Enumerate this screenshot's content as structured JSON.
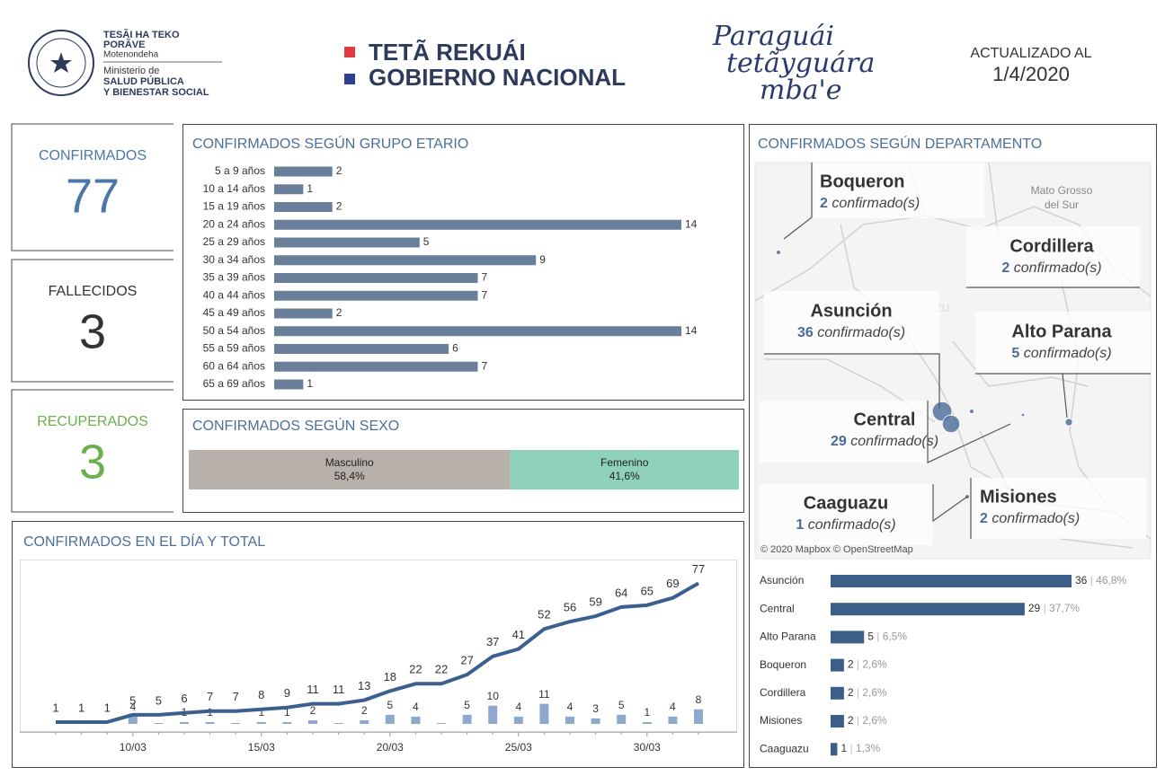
{
  "header": {
    "ministry_lines": [
      "TESÃI HA TEKO",
      "PORÃVE",
      "Motenondeha",
      "Ministerio de",
      "SALUD PÚBLICA",
      "Y BIENESTAR SOCIAL"
    ],
    "government": [
      "TETÃ REKUÁI",
      "GOBIERNO NACIONAL"
    ],
    "slogan": [
      "Paraguái",
      "tetãyguára",
      "mba'e"
    ],
    "updated_label": "ACTUALIZADO AL",
    "updated_date": "1/4/2020"
  },
  "kpis": [
    {
      "label": "CONFIRMADOS",
      "value": 77,
      "color": "#4a76a8"
    },
    {
      "label": "FALLECIDOS",
      "value": 3,
      "color": "#333333"
    },
    {
      "label": "RECUPERADOS",
      "value": 3,
      "color": "#6ab04c"
    }
  ],
  "chart_data": [
    {
      "type": "hbar",
      "title": "CONFIRMADOS SEGÚN GRUPO ETARIO",
      "categories": [
        "5 a 9 años",
        "10 a 14 años",
        "15 a 19 años",
        "20 a 24 años",
        "25 a 29 años",
        "30 a 34 años",
        "35 a 39 años",
        "40 a 44 años",
        "45 a 49 años",
        "50 a 54 años",
        "55 a 59 años",
        "60 a 64 años",
        "65 a 69 años"
      ],
      "values": [
        2,
        1,
        2,
        14,
        5,
        9,
        7,
        7,
        2,
        14,
        6,
        7,
        1
      ],
      "color": "#6a7f9a",
      "xlim": [
        0,
        14
      ]
    },
    {
      "type": "share",
      "title": "CONFIRMADOS SEGÚN SEXO",
      "series": [
        {
          "name": "Masculino",
          "color": "#b8b0ab",
          "values": [
            58.4
          ],
          "value_labels": [
            "58,4%"
          ]
        },
        {
          "name": "Femenino",
          "color": "#8fd1bb",
          "values": [
            41.6
          ],
          "value_labels": [
            "41,6%"
          ]
        }
      ],
      "xlim": [
        0,
        100
      ]
    },
    {
      "type": "linebar",
      "title": "CONFIRMADOS EN EL DÍA Y TOTAL",
      "categories": [
        null,
        null,
        null,
        "10/03",
        null,
        null,
        null,
        null,
        "15/03",
        null,
        null,
        null,
        null,
        "20/03",
        null,
        null,
        null,
        null,
        "25/03",
        null,
        null,
        null,
        null,
        "30/03",
        null,
        null
      ],
      "series": [
        {
          "kind": "line",
          "color": "#3b5f8e",
          "values": [
            1,
            1,
            1,
            5,
            5,
            6,
            7,
            7,
            8,
            9,
            11,
            11,
            13,
            18,
            22,
            22,
            27,
            37,
            41,
            52,
            56,
            59,
            64,
            65,
            69,
            77
          ]
        },
        {
          "kind": "bar",
          "color": "#8ea9cd",
          "values": [
            null,
            null,
            null,
            4,
            0,
            1,
            1,
            0,
            1,
            1,
            2,
            0,
            2,
            5,
            4,
            0,
            5,
            10,
            4,
            11,
            4,
            3,
            5,
            1,
            4,
            8
          ]
        }
      ],
      "ylim": [
        0,
        90
      ]
    },
    {
      "type": "map",
      "title": "CONFIRMADOS SEGÚN DEPARTAMENTO",
      "regions": [
        "Boqueron",
        "Cordillera",
        "Asunción",
        "Alto Parana",
        "Central",
        "Caaguazu",
        "Misiones"
      ],
      "values": [
        2,
        2,
        36,
        5,
        29,
        1,
        2
      ],
      "unit": "confirmado(s)",
      "color": "#4a6c98",
      "place_labels": [
        "Mato Grosso",
        "del Sur",
        "Caaguazu"
      ],
      "attribution": "© 2020 Mapbox © OpenStreetMap"
    },
    {
      "type": "hbar",
      "categories": [
        "Asunción",
        "Central",
        "Alto Parana",
        "Boqueron",
        "Cordillera",
        "Misiones",
        "Caaguazu"
      ],
      "values": [
        36,
        29,
        5,
        2,
        2,
        2,
        1
      ],
      "shares": [
        46.8,
        37.7,
        6.5,
        2.6,
        2.6,
        2.6,
        1.3
      ],
      "share_labels": [
        "46,8%",
        "37,7%",
        "6,5%",
        "2,6%",
        "2,6%",
        "2,6%",
        "1,3%"
      ],
      "color": "#3c5f8a",
      "xlim": [
        0,
        36
      ]
    }
  ]
}
